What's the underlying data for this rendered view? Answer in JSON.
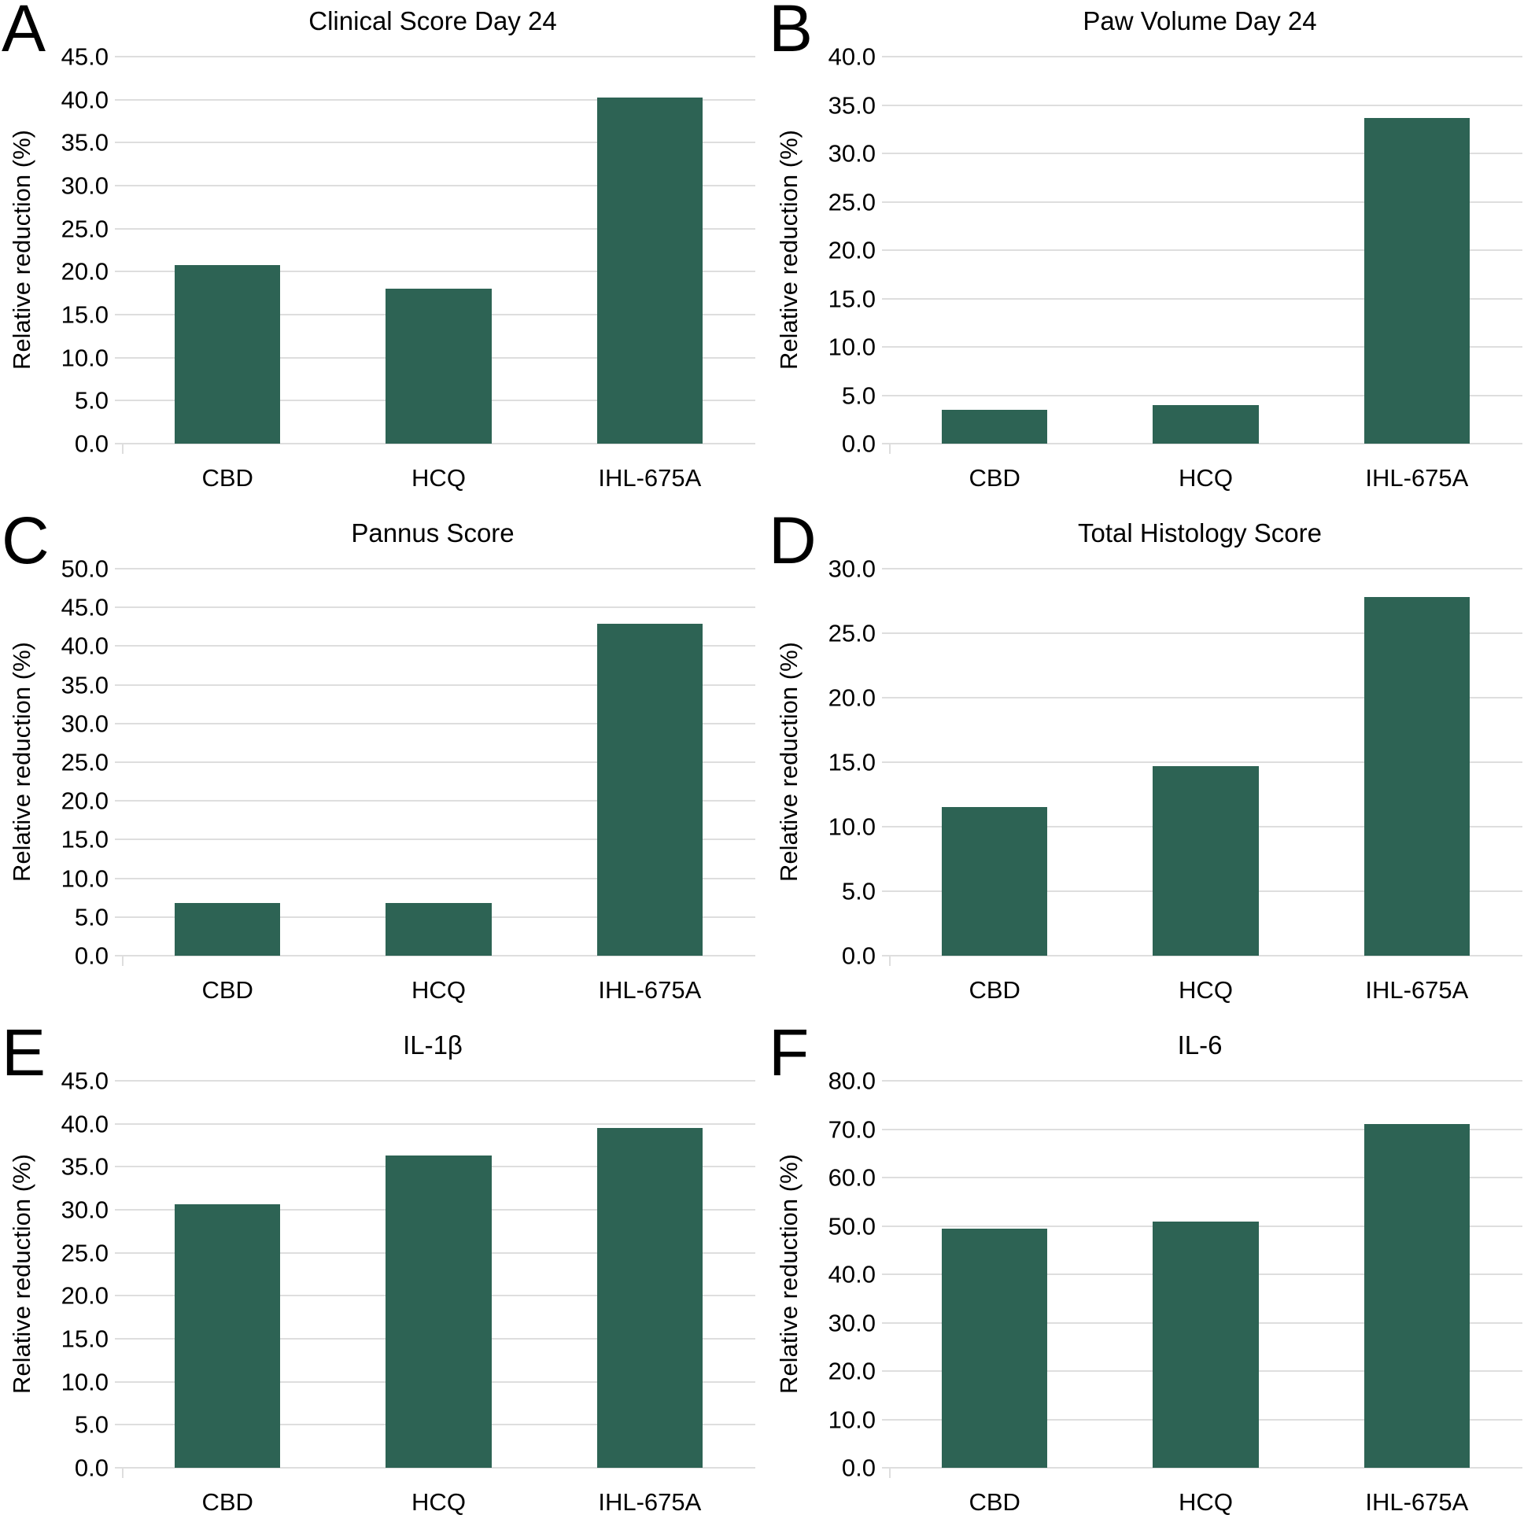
{
  "figure": {
    "y_axis_label": "Relative reduction (%)",
    "categories": [
      "CBD",
      "HCQ",
      "IHL-675A"
    ]
  },
  "colors": {
    "bar": "#2D6354",
    "gridline": "#DEDEDE",
    "text": "#000000",
    "background": "#FFFFFF"
  },
  "chart_data": [
    {
      "type": "bar",
      "panel_letter": "A",
      "title": "Clinical Score Day 24",
      "ylabel": "Relative reduction (%)",
      "xlabel": "",
      "categories": [
        "CBD",
        "HCQ",
        "IHL-675A"
      ],
      "values": [
        20.8,
        18.0,
        40.2
      ],
      "ylim": [
        0,
        45
      ],
      "ytick_step": 5,
      "grid": true,
      "legend": false,
      "bar_color": "#2D6354"
    },
    {
      "type": "bar",
      "panel_letter": "B",
      "title": "Paw Volume Day 24",
      "ylabel": "Relative reduction (%)",
      "xlabel": "",
      "categories": [
        "CBD",
        "HCQ",
        "IHL-675A"
      ],
      "values": [
        3.5,
        4.0,
        33.7
      ],
      "ylim": [
        0,
        40
      ],
      "ytick_step": 5,
      "grid": true,
      "legend": false,
      "bar_color": "#2D6354"
    },
    {
      "type": "bar",
      "panel_letter": "C",
      "title": "Pannus Score",
      "ylabel": "Relative reduction (%)",
      "xlabel": "",
      "categories": [
        "CBD",
        "HCQ",
        "IHL-675A"
      ],
      "values": [
        6.8,
        6.8,
        42.9
      ],
      "ylim": [
        0,
        50
      ],
      "ytick_step": 5,
      "grid": true,
      "legend": false,
      "bar_color": "#2D6354"
    },
    {
      "type": "bar",
      "panel_letter": "D",
      "title": "Total Histology Score",
      "ylabel": "Relative reduction (%)",
      "xlabel": "",
      "categories": [
        "CBD",
        "HCQ",
        "IHL-675A"
      ],
      "values": [
        11.5,
        14.7,
        27.8
      ],
      "ylim": [
        0,
        30
      ],
      "ytick_step": 5,
      "grid": true,
      "legend": false,
      "bar_color": "#2D6354"
    },
    {
      "type": "bar",
      "panel_letter": "E",
      "title": "IL-1β",
      "ylabel": "Relative reduction (%)",
      "xlabel": "",
      "categories": [
        "CBD",
        "HCQ",
        "IHL-675A"
      ],
      "values": [
        30.6,
        36.3,
        39.5
      ],
      "ylim": [
        0,
        45
      ],
      "ytick_step": 5,
      "grid": true,
      "legend": false,
      "bar_color": "#2D6354"
    },
    {
      "type": "bar",
      "panel_letter": "F",
      "title": "IL-6",
      "ylabel": "Relative reduction (%)",
      "xlabel": "",
      "categories": [
        "CBD",
        "HCQ",
        "IHL-675A"
      ],
      "values": [
        49.5,
        50.9,
        71.1
      ],
      "ylim": [
        0,
        80
      ],
      "ytick_step": 10,
      "grid": true,
      "legend": false,
      "bar_color": "#2D6354"
    }
  ]
}
